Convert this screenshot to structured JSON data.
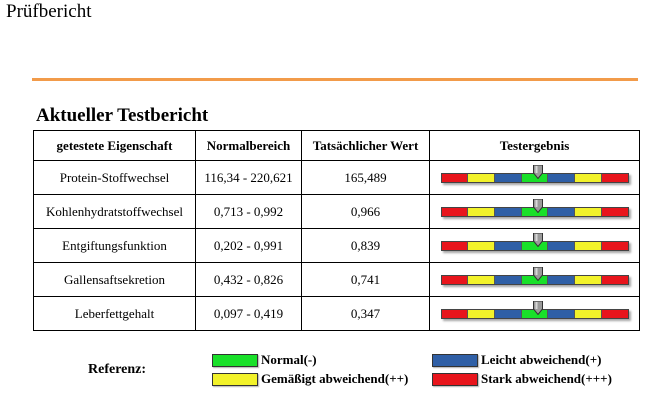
{
  "page_title": "Prüfbericht",
  "report_heading": "Aktueller Testbericht",
  "colors": {
    "divider": "#f29b4a",
    "red": "#e8151c",
    "yellow": "#f2f22a",
    "blue": "#2f5fa6",
    "green": "#19e02a"
  },
  "table": {
    "headers": [
      "getestete Eigenschaft",
      "Normalbereich",
      "Tatsächlicher Wert",
      "Testergebnis"
    ],
    "rows": [
      {
        "property": "Protein-Stoffwechsel",
        "range": "116,34 - 220,621",
        "value": "165,489",
        "position": 0.52
      },
      {
        "property": "Kohlenhydratstoffwechsel",
        "range": "0,713 - 0,992",
        "value": "0,966",
        "position": 0.52
      },
      {
        "property": "Entgiftungsfunktion",
        "range": "0,202 - 0,991",
        "value": "0,839",
        "position": 0.52
      },
      {
        "property": "Gallensaftsekretion",
        "range": "0,432 - 0,826",
        "value": "0,741",
        "position": 0.52
      },
      {
        "property": "Leberfettgehalt",
        "range": "0,097 - 0,419",
        "value": "0,347",
        "position": 0.52
      }
    ]
  },
  "legend": {
    "title": "Referenz:",
    "items": [
      {
        "key": "green",
        "label": "Normal(-)"
      },
      {
        "key": "blue",
        "label": "Leicht abweichend(+)"
      },
      {
        "key": "yellow",
        "label": "Gemäßigt abweichend(++)"
      },
      {
        "key": "red",
        "label": "Stark abweichend(+++)"
      }
    ]
  }
}
